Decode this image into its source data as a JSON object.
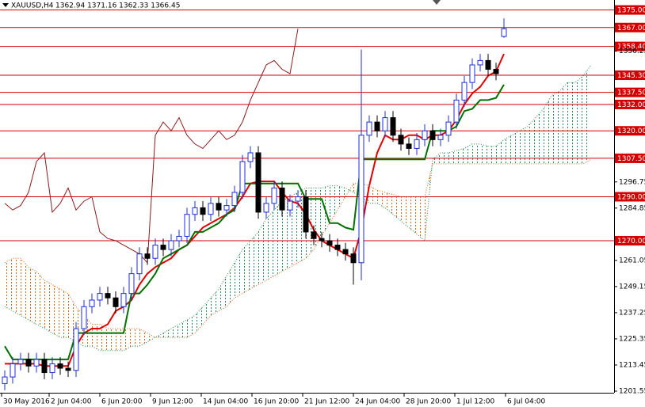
{
  "chart_data": {
    "type": "candlestick",
    "title": "XAUUSD,H4",
    "ohlc_caption": "1362.94 1371.16 1362.33 1366.45",
    "colors": {
      "up": "#1c2fd1",
      "down": "#000000",
      "tenkan": "#e00000",
      "kijun": "#007000",
      "chikou": "#8b1a1a",
      "cloud_up": "#2e8b57",
      "cloud_down": "#d2691e",
      "level": "#d40000"
    },
    "xlim": [
      -0.6,
      76.9
    ],
    "ylim": [
      1200.83,
      1379.53
    ],
    "xticks": [
      {
        "value": -0.4,
        "label": "30 May 2016"
      },
      {
        "value": 5.6,
        "label": "2 Jun 04:00"
      },
      {
        "value": 12,
        "label": "6 Jun 20:00"
      },
      {
        "value": 18.4,
        "label": "9 Jun 12:00"
      },
      {
        "value": 24.8,
        "label": "14 Jun 04:00"
      },
      {
        "value": 31.2,
        "label": "16 Jun 20:00"
      },
      {
        "value": 37.6,
        "label": "21 Jun 12:00"
      },
      {
        "value": 44,
        "label": "24 Jun 04:00"
      },
      {
        "value": 50.4,
        "label": "28 Jun 20:00"
      },
      {
        "value": 56.8,
        "label": "1 Jul 12:00"
      },
      {
        "value": 63.2,
        "label": "6 Jul 04:00"
      }
    ],
    "yticks": [
      1201.55,
      1213.45,
      1225.35,
      1237.25,
      1249.15,
      1261.05,
      1284.85,
      1296.75,
      1356.25
    ],
    "levels": [
      {
        "value": 1375,
        "label": "1375.00"
      },
      {
        "value": 1367,
        "label": "1367.00"
      },
      {
        "value": 1358.4,
        "label": "1358.40"
      },
      {
        "value": 1345.3,
        "label": "1345.30"
      },
      {
        "value": 1337.5,
        "label": "1337.50"
      },
      {
        "value": 1332,
        "label": "1332.00"
      },
      {
        "value": 1320,
        "label": "1320.00"
      },
      {
        "value": 1307.5,
        "label": "1307.50"
      },
      {
        "value": 1290,
        "label": "1290.00"
      },
      {
        "value": 1270,
        "label": "1270.00"
      }
    ],
    "open": [
      1205,
      1208,
      1214,
      1216,
      1213,
      1216,
      1210,
      1214,
      1212,
      1211,
      1230,
      1240,
      1243,
      1246,
      1244,
      1240,
      1246,
      1255,
      1264,
      1262,
      1268,
      1266,
      1270,
      1272,
      1282,
      1285,
      1282,
      1287,
      1284,
      1286,
      1292,
      1306,
      1310,
      1283,
      1287,
      1294,
      1284,
      1288,
      1290,
      1274,
      1271,
      1270,
      1268,
      1266,
      1264,
      1260,
      1318,
      1324,
      1320,
      1326,
      1318,
      1314,
      1312,
      1316,
      1320,
      1316,
      1318,
      1324,
      1334,
      1342,
      1350,
      1352,
      1348,
      1362.94
    ],
    "high": [
      1211,
      1217,
      1219,
      1219,
      1219,
      1219,
      1217,
      1217,
      1215,
      1233,
      1243,
      1246,
      1249,
      1249,
      1247,
      1249,
      1258,
      1267,
      1267,
      1271,
      1271,
      1273,
      1275,
      1285,
      1288,
      1288,
      1290,
      1290,
      1289,
      1295,
      1309,
      1313,
      1313,
      1290,
      1297,
      1297,
      1291,
      1293,
      1293,
      1277,
      1274,
      1273,
      1271,
      1269,
      1267,
      1357,
      1327,
      1327,
      1329,
      1329,
      1321,
      1317,
      1319,
      1323,
      1323,
      1321,
      1327,
      1337,
      1345,
      1353,
      1355,
      1355,
      1351,
      1371.16
    ],
    "low": [
      1202,
      1205,
      1211,
      1210,
      1210,
      1207,
      1207,
      1209,
      1208,
      1208,
      1227,
      1237,
      1240,
      1241,
      1237,
      1237,
      1243,
      1252,
      1259,
      1259,
      1263,
      1263,
      1267,
      1269,
      1279,
      1279,
      1279,
      1281,
      1281,
      1283,
      1289,
      1303,
      1280,
      1280,
      1284,
      1281,
      1281,
      1285,
      1271,
      1268,
      1267,
      1265,
      1263,
      1261,
      1250,
      1252,
      1315,
      1317,
      1317,
      1315,
      1311,
      1309,
      1309,
      1313,
      1313,
      1313,
      1315,
      1321,
      1331,
      1339,
      1347,
      1345,
      1343,
      1362.33
    ],
    "close": [
      1208,
      1214,
      1216,
      1213,
      1216,
      1210,
      1214,
      1212,
      1211,
      1230,
      1240,
      1243,
      1246,
      1244,
      1240,
      1246,
      1255,
      1264,
      1262,
      1268,
      1266,
      1270,
      1272,
      1282,
      1285,
      1282,
      1287,
      1284,
      1286,
      1292,
      1306,
      1310,
      1283,
      1287,
      1294,
      1284,
      1288,
      1290,
      1274,
      1271,
      1270,
      1268,
      1266,
      1264,
      1260,
      1318,
      1324,
      1320,
      1326,
      1318,
      1314,
      1312,
      1316,
      1320,
      1316,
      1318,
      1324,
      1334,
      1342,
      1350,
      1352,
      1348,
      1346,
      1366.45
    ],
    "series": [
      {
        "key": "tenkan",
        "values": [
          1214,
          1214,
          1214,
          1214,
          1214,
          1213,
          1213,
          1213,
          1213,
          1222,
          1228,
          1230,
          1230,
          1232,
          1238,
          1240,
          1243,
          1250,
          1255,
          1258,
          1260,
          1262,
          1266,
          1268,
          1272,
          1276,
          1278,
          1280,
          1282,
          1285,
          1290,
          1296,
          1297,
          1297,
          1297,
          1292,
          1288,
          1287,
          1282,
          1275,
          1270,
          1268,
          1266,
          1264,
          1262,
          1275,
          1295,
          1310,
          1318,
          1316,
          1316,
          1318,
          1318,
          1316,
          1318,
          1318,
          1320,
          1325,
          1332,
          1337,
          1340,
          1345,
          1347,
          1355,
          null,
          null,
          null,
          null,
          null,
          null,
          null,
          null,
          null,
          null,
          null
        ]
      },
      {
        "key": "kijun",
        "values": [
          1222,
          1216,
          1216,
          1216,
          1216,
          1216,
          1216,
          1216,
          1216,
          1228,
          1228,
          1228,
          1228,
          1228,
          1228,
          1228,
          1246,
          1246,
          1250,
          1255,
          1262,
          1264,
          1266,
          1268,
          1274,
          1274,
          1276,
          1278,
          1282,
          1284,
          1296,
          1296,
          1296,
          1296,
          1296,
          1296,
          1296,
          1296,
          1289,
          1289,
          1289,
          1278,
          1278,
          1276,
          1275,
          1307,
          1307,
          1307,
          1307,
          1307,
          1307,
          1307,
          1307,
          1307,
          1320,
          1320,
          1320,
          1322,
          1329,
          1330,
          1334,
          1334,
          1335,
          1341,
          null,
          null,
          null,
          null,
          null,
          null,
          null,
          null,
          null,
          null,
          null
        ]
      },
      {
        "key": "chikou",
        "values": [
          1287,
          1284,
          1286,
          1292,
          1306,
          1310,
          1283,
          1287,
          1294,
          1284,
          1288,
          1290,
          1274,
          1271,
          1270,
          1268,
          1266,
          1264,
          1260,
          1318,
          1324,
          1320,
          1326,
          1318,
          1314,
          1312,
          1316,
          1320,
          1316,
          1318,
          1324,
          1334,
          1342,
          1350,
          1352,
          1348,
          1346,
          1366.45,
          null,
          null,
          null,
          null,
          null,
          null,
          null,
          null,
          null,
          null,
          null,
          null,
          null,
          null,
          null,
          null,
          null,
          null,
          null,
          null,
          null,
          null,
          null,
          null,
          null,
          null,
          null,
          null,
          null,
          null,
          null,
          null,
          null,
          null,
          null,
          null,
          null
        ]
      },
      {
        "key": "span_a",
        "values": [
          1240,
          1238,
          1236,
          1234,
          1232,
          1230,
          1228,
          1226,
          1226,
          1224,
          1222,
          1222,
          1220,
          1220,
          1220,
          1220,
          1222,
          1222,
          1224,
          1226,
          1228,
          1230,
          1232,
          1234,
          1236,
          1240,
          1244,
          1248,
          1254,
          1260,
          1266,
          1270,
          1274,
          1280,
          1284,
          1288,
          1290,
          1292,
          1294,
          1294,
          1294,
          1295,
          1295,
          1294,
          1292,
          1290,
          1287,
          1287,
          1285,
          1282,
          1279,
          1276,
          1273,
          1270,
          1307,
          1310,
          1310,
          1311,
          1312,
          1314,
          1314,
          1313,
          1313,
          1316,
          1318,
          1320,
          1322,
          1326,
          1330,
          1336,
          1338,
          1342,
          1342,
          1345,
          1350
        ]
      },
      {
        "key": "span_b",
        "values": [
          1260,
          1262,
          1262,
          1258,
          1256,
          1252,
          1250,
          1248,
          1246,
          1240,
          1236,
          1232,
          1232,
          1230,
          1230,
          1230,
          1230,
          1230,
          1228,
          1226,
          1226,
          1226,
          1226,
          1226,
          1228,
          1232,
          1236,
          1238,
          1240,
          1244,
          1246,
          1248,
          1250,
          1252,
          1254,
          1256,
          1258,
          1260,
          1262,
          1266,
          1272,
          1278,
          1284,
          1290,
          1296,
          1296,
          1295,
          1293,
          1292,
          1291,
          1290,
          1290,
          1290,
          1290,
          1305,
          1305,
          1305,
          1305,
          1305,
          1305,
          1305,
          1305,
          1305,
          1305,
          1305,
          1305,
          1305,
          1305,
          1305,
          1305,
          1305,
          1305,
          1305,
          1305,
          1307
        ]
      }
    ]
  }
}
